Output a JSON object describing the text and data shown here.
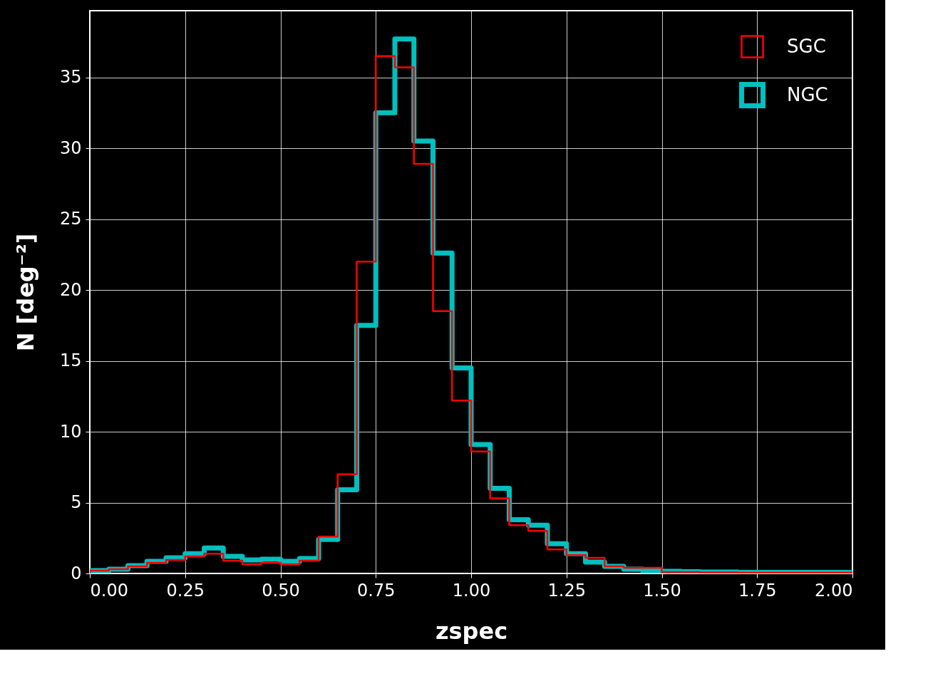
{
  "chart_data": {
    "type": "histogram",
    "xlabel": "zspec",
    "ylabel": "N [deg⁻²]",
    "bins": [
      0.0,
      0.05,
      0.1,
      0.15,
      0.2,
      0.25,
      0.3,
      0.35,
      0.4,
      0.45,
      0.5,
      0.55,
      0.6,
      0.65,
      0.7,
      0.75,
      0.8,
      0.85,
      0.9,
      0.95,
      1.0,
      1.05,
      1.1,
      1.15,
      1.2,
      1.25,
      1.3,
      1.35,
      1.4,
      1.45,
      1.5,
      1.55,
      1.6,
      1.65,
      1.7,
      1.75,
      1.8,
      1.85,
      1.9,
      1.95,
      2.0
    ],
    "series": [
      {
        "name": "SGC",
        "color": "#ff0000",
        "values": [
          0.2,
          0.3,
          0.5,
          0.75,
          0.95,
          1.2,
          1.4,
          0.9,
          0.65,
          0.75,
          0.65,
          0.9,
          2.6,
          7.0,
          22.0,
          36.5,
          35.7,
          28.9,
          18.5,
          12.2,
          8.6,
          5.3,
          3.4,
          3.0,
          1.7,
          1.3,
          1.1,
          0.5,
          0.4,
          0.4,
          0.1,
          0.1,
          0.08,
          0.08,
          0.05,
          0.05,
          0.05,
          0.05,
          0.05,
          0.05
        ]
      },
      {
        "name": "NGC",
        "color": "#00bfbf",
        "values": [
          0.2,
          0.3,
          0.55,
          0.85,
          1.1,
          1.4,
          1.8,
          1.2,
          0.95,
          1.0,
          0.85,
          1.05,
          2.4,
          5.9,
          17.5,
          32.5,
          37.7,
          30.5,
          22.6,
          14.5,
          9.1,
          6.0,
          3.8,
          3.4,
          2.1,
          1.4,
          0.8,
          0.5,
          0.3,
          0.2,
          0.15,
          0.12,
          0.1,
          0.1,
          0.08,
          0.08,
          0.08,
          0.08,
          0.08,
          0.08
        ]
      }
    ],
    "xlim": [
      0,
      2
    ],
    "ylim": [
      0,
      39.7
    ],
    "xticks": [
      {
        "value": 0,
        "label": "0.00"
      },
      {
        "value": 0.25,
        "label": "0.25"
      },
      {
        "value": 0.5,
        "label": "0.50"
      },
      {
        "value": 0.75,
        "label": "0.75"
      },
      {
        "value": 1,
        "label": "1.00"
      },
      {
        "value": 1.25,
        "label": "1.25"
      },
      {
        "value": 1.5,
        "label": "1.50"
      },
      {
        "value": 1.75,
        "label": "1.75"
      },
      {
        "value": 2,
        "label": "2.00"
      }
    ],
    "yticks": [
      0,
      5,
      10,
      15,
      20,
      25,
      30,
      35
    ],
    "grid": true,
    "legend": "top right"
  }
}
